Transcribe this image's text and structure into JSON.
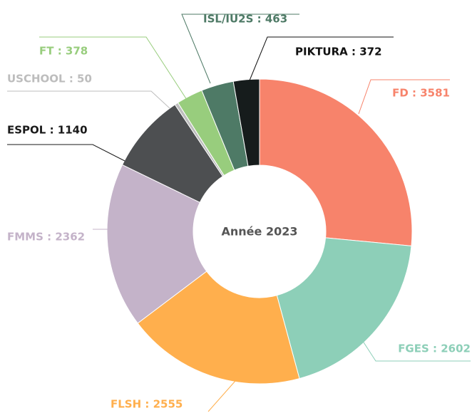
{
  "chart_data": {
    "type": "donut",
    "center_label": "Année 2023",
    "values": [
      3581,
      2602,
      2555,
      2362,
      1140,
      50,
      378,
      463,
      372
    ],
    "value_labels": [
      "FD : 3581",
      "FGES : 2602",
      "FLSH : 2555",
      "FMMS : 2362",
      "ESPOL : 1140",
      "USCHOOL : 50",
      "FT : 378",
      "ISL/IU2S : 463",
      "PIKTURA : 372"
    ],
    "colors": [
      "#f7836b",
      "#8dcfb8",
      "#ffaf4d",
      "#c4b3c9",
      "#4d4f51",
      "#bdbdbd",
      "#98cd7d",
      "#4e7a66",
      "#161c1c"
    ],
    "label_colors": [
      "#f7836b",
      "#8dcfb8",
      "#ffaf4d",
      "#c4b3c9",
      "#1a1a1a",
      "#bdbdbd",
      "#98cd7d",
      "#4e7a66",
      "#111111"
    ]
  }
}
